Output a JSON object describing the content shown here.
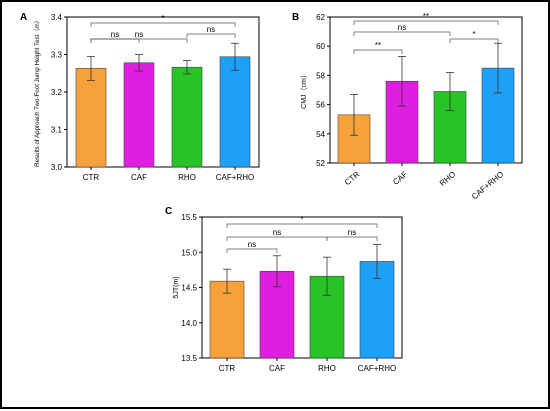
{
  "chart_data": [
    {
      "panel": "A",
      "type": "bar",
      "categories": [
        "CTR",
        "CAF",
        "RHO",
        "CAF+RHO"
      ],
      "values": [
        3.263,
        3.278,
        3.266,
        3.294
      ],
      "errors": [
        0.032,
        0.022,
        0.018,
        0.036
      ],
      "colors": [
        "#f7a13a",
        "#e01ee0",
        "#27c327",
        "#1ea0f7"
      ],
      "ylabel": "Results of Approach Two-Foot Jump Height Test（m）",
      "ylim": [
        3.0,
        3.4
      ],
      "yticks": [
        "3.0",
        "3.1",
        "3.2",
        "3.3",
        "3.4"
      ],
      "comparisons": [
        {
          "from": 0,
          "to": 3,
          "label": "*"
        },
        {
          "from": 0,
          "to": 1,
          "label": "ns"
        },
        {
          "from": 0,
          "to": 2,
          "label": "ns"
        },
        {
          "from": 2,
          "to": 3,
          "label": "ns"
        }
      ]
    },
    {
      "panel": "B",
      "type": "bar",
      "categories": [
        "CTR",
        "CAF",
        "RHO",
        "CAF+RHO"
      ],
      "values": [
        55.3,
        57.6,
        56.9,
        58.5
      ],
      "errors": [
        1.4,
        1.7,
        1.3,
        1.7
      ],
      "colors": [
        "#f7a13a",
        "#e01ee0",
        "#27c327",
        "#1ea0f7"
      ],
      "ylabel": "CMJ（cm）",
      "ylim": [
        52,
        62
      ],
      "yticks": [
        "52",
        "54",
        "56",
        "58",
        "60",
        "62"
      ],
      "comparisons": [
        {
          "from": 0,
          "to": 3,
          "label": "**"
        },
        {
          "from": 0,
          "to": 2,
          "label": "ns"
        },
        {
          "from": 0,
          "to": 1,
          "label": "**"
        },
        {
          "from": 2,
          "to": 3,
          "label": "*"
        }
      ]
    },
    {
      "panel": "C",
      "type": "bar",
      "categories": [
        "CTR",
        "CAF",
        "RHO",
        "CAF+RHO"
      ],
      "values": [
        14.59,
        14.73,
        14.66,
        14.87
      ],
      "errors": [
        0.17,
        0.22,
        0.27,
        0.24
      ],
      "colors": [
        "#f7a13a",
        "#e01ee0",
        "#27c327",
        "#1ea0f7"
      ],
      "ylabel": "5JT(m)",
      "ylim": [
        13.5,
        15.5
      ],
      "yticks": [
        "13.5",
        "14.0",
        "14.5",
        "15.0",
        "15.5"
      ],
      "comparisons": [
        {
          "from": 0,
          "to": 3,
          "label": "*"
        },
        {
          "from": 0,
          "to": 1,
          "label": "ns"
        },
        {
          "from": 0,
          "to": 2,
          "label": "ns"
        },
        {
          "from": 2,
          "to": 3,
          "label": "ns"
        }
      ]
    }
  ]
}
